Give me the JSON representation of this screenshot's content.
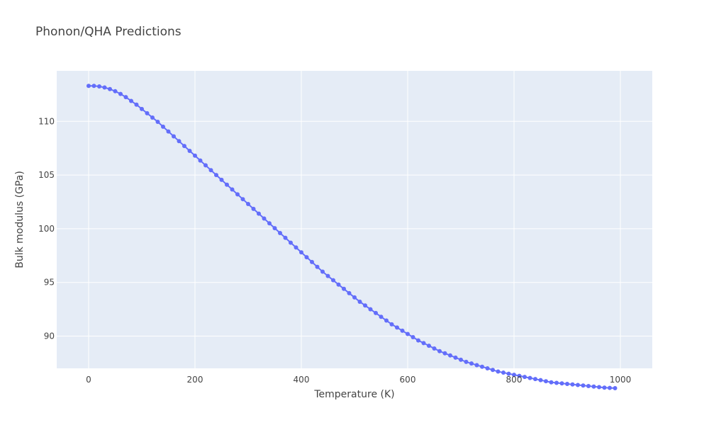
{
  "chart_data": {
    "type": "line",
    "mode": "lines+markers",
    "title": "Phonon/QHA Predictions",
    "xlabel": "Temperature (K)",
    "ylabel": "Bulk modulus (GPa)",
    "xlim": [
      -60,
      1060
    ],
    "ylim": [
      87,
      114.7
    ],
    "x_ticks": [
      0,
      200,
      400,
      600,
      800,
      1000
    ],
    "x_tick_labels": [
      "0",
      "200",
      "400",
      "600",
      "800",
      "1000"
    ],
    "y_ticks": [
      90,
      95,
      100,
      105,
      110
    ],
    "y_tick_labels": [
      "90",
      "95",
      "100",
      "105",
      "110"
    ],
    "grid": true,
    "colors": {
      "plot_background": "#e5ecf6",
      "grid": "#ffffff",
      "series": "#636efa"
    },
    "series": [
      {
        "x": [
          0,
          10,
          20,
          30,
          40,
          50,
          60,
          70,
          80,
          90,
          100,
          110,
          120,
          130,
          140,
          150,
          160,
          170,
          180,
          190,
          200,
          210,
          220,
          230,
          240,
          250,
          260,
          270,
          280,
          290,
          300,
          310,
          320,
          330,
          340,
          350,
          360,
          370,
          380,
          390,
          400,
          410,
          420,
          430,
          440,
          450,
          460,
          470,
          480,
          490,
          500,
          510,
          520,
          530,
          540,
          550,
          560,
          570,
          580,
          590,
          600,
          610,
          620,
          630,
          640,
          650,
          660,
          670,
          680,
          690,
          700,
          710,
          720,
          730,
          740,
          750,
          760,
          770,
          780,
          790,
          800,
          810,
          820,
          830,
          840,
          850,
          860,
          870,
          880,
          890,
          900,
          910,
          920,
          930,
          940,
          950,
          960,
          970,
          980,
          990
        ],
        "y": [
          113.3,
          113.3,
          113.25,
          113.15,
          113.0,
          112.8,
          112.55,
          112.25,
          111.9,
          111.55,
          111.15,
          110.75,
          110.35,
          109.95,
          109.5,
          109.05,
          108.6,
          108.15,
          107.7,
          107.25,
          106.8,
          106.35,
          105.9,
          105.45,
          105.0,
          104.55,
          104.1,
          103.65,
          103.2,
          102.75,
          102.3,
          101.85,
          101.4,
          100.95,
          100.5,
          100.05,
          99.6,
          99.15,
          98.7,
          98.25,
          97.8,
          97.35,
          96.9,
          96.45,
          96.0,
          95.6,
          95.2,
          94.8,
          94.4,
          94.0,
          93.6,
          93.2,
          92.85,
          92.5,
          92.15,
          91.8,
          91.45,
          91.1,
          90.8,
          90.5,
          90.2,
          89.9,
          89.6,
          89.35,
          89.1,
          88.85,
          88.6,
          88.4,
          88.2,
          88.0,
          87.8,
          87.6,
          87.45,
          87.3,
          87.15,
          87.0,
          86.85,
          86.7,
          86.6,
          86.5,
          86.4,
          86.3,
          86.2,
          86.1,
          86.0,
          85.9,
          85.8,
          85.7,
          85.65,
          85.6,
          85.55,
          85.5,
          85.45,
          85.4,
          85.35,
          85.3,
          85.25,
          85.2,
          85.18,
          85.15
        ]
      }
    ]
  }
}
